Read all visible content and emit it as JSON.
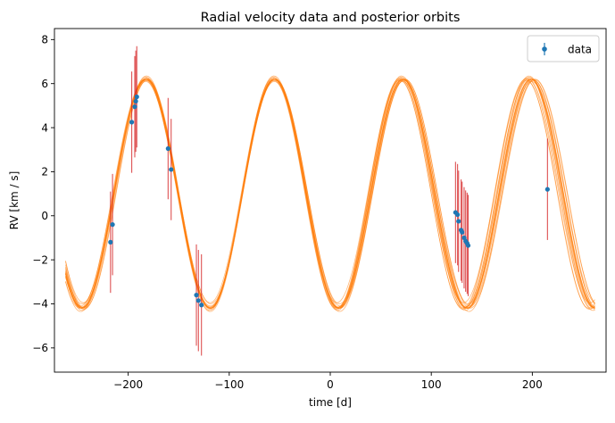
{
  "chart_data": {
    "type": "scatter",
    "title": "Radial velocity data and posterior orbits",
    "xlabel": "time [d]",
    "ylabel": "RV [km / s]",
    "xlim": [
      -273,
      273
    ],
    "ylim": [
      -7.1,
      8.5
    ],
    "xticks": [
      -200,
      -100,
      0,
      100,
      200
    ],
    "xtick_labels": [
      "−200",
      "−100",
      "0",
      "100",
      "200"
    ],
    "yticks": [
      -6,
      -4,
      -2,
      0,
      2,
      4,
      6,
      8
    ],
    "ytick_labels": [
      "−6",
      "−4",
      "−2",
      "0",
      "2",
      "4",
      "6",
      "8"
    ],
    "grid": false,
    "legend": {
      "position": "top-right",
      "entries": [
        "data"
      ]
    },
    "colors": {
      "data": "#1f77b4",
      "errorbar": "#d62728",
      "orbits": "#ff7f0e"
    },
    "data_series": {
      "name": "data",
      "points": [
        {
          "x": -217.5,
          "y": -1.2,
          "err": 2.3
        },
        {
          "x": -215.5,
          "y": -0.4,
          "err": 2.3
        },
        {
          "x": -196.5,
          "y": 4.25,
          "err": 2.3
        },
        {
          "x": -193.5,
          "y": 4.95,
          "err": 2.3
        },
        {
          "x": -192.5,
          "y": 5.2,
          "err": 2.3
        },
        {
          "x": -191.5,
          "y": 5.4,
          "err": 2.3
        },
        {
          "x": -160.5,
          "y": 3.05,
          "err": 2.3
        },
        {
          "x": -157.5,
          "y": 2.1,
          "err": 2.3
        },
        {
          "x": -132.5,
          "y": -3.6,
          "err": 2.3
        },
        {
          "x": -130.5,
          "y": -3.85,
          "err": 2.3
        },
        {
          "x": -127.5,
          "y": -4.05,
          "err": 2.3
        },
        {
          "x": 124,
          "y": 0.15,
          "err": 2.3
        },
        {
          "x": 126,
          "y": 0.05,
          "err": 2.3
        },
        {
          "x": 127,
          "y": -0.25,
          "err": 2.3
        },
        {
          "x": 129.5,
          "y": -0.65,
          "err": 2.3
        },
        {
          "x": 130.5,
          "y": -0.75,
          "err": 2.3
        },
        {
          "x": 132.5,
          "y": -1.0,
          "err": 2.3
        },
        {
          "x": 134,
          "y": -1.15,
          "err": 2.3
        },
        {
          "x": 135.5,
          "y": -1.25,
          "err": 2.3
        },
        {
          "x": 136.5,
          "y": -1.35,
          "err": 2.3
        },
        {
          "x": 215,
          "y": 1.2,
          "err": 2.3
        }
      ]
    },
    "posterior_orbits": {
      "x_range": [
        -262,
        262
      ],
      "curves": [
        {
          "amp": 5.2,
          "period": 127,
          "t0": -214,
          "offset": 1.0
        },
        {
          "amp": 5.2,
          "period": 126.6,
          "t0": -214,
          "offset": 1.05
        },
        {
          "amp": 5.15,
          "period": 127.3,
          "t0": -214.5,
          "offset": 0.95
        },
        {
          "amp": 5.25,
          "period": 126.2,
          "t0": -213.5,
          "offset": 1.1
        },
        {
          "amp": 5.2,
          "period": 125.8,
          "t0": -213,
          "offset": 1.0
        },
        {
          "amp": 5.2,
          "period": 127.7,
          "t0": -214.5,
          "offset": 1.0
        },
        {
          "amp": 5.1,
          "period": 125.4,
          "t0": -213,
          "offset": 1.15
        },
        {
          "amp": 5.25,
          "period": 128.1,
          "t0": -215,
          "offset": 0.9
        },
        {
          "amp": 5.2,
          "period": 126.9,
          "t0": -214,
          "offset": 1.0
        },
        {
          "amp": 5.15,
          "period": 128.4,
          "t0": -215,
          "offset": 1.05
        },
        {
          "amp": 5.2,
          "period": 125.1,
          "t0": -212.5,
          "offset": 0.95
        },
        {
          "amp": 5.3,
          "period": 126.4,
          "t0": -214,
          "offset": 1.0
        },
        {
          "amp": 5.1,
          "period": 127.5,
          "t0": -214,
          "offset": 1.1
        },
        {
          "amp": 5.2,
          "period": 124.8,
          "t0": -212,
          "offset": 1.0
        },
        {
          "amp": 5.2,
          "period": 128.7,
          "t0": -215.5,
          "offset": 1.0
        },
        {
          "amp": 5.2,
          "period": 127.1,
          "t0": -214.2,
          "offset": 1.0
        },
        {
          "amp": 5.2,
          "period": 126.8,
          "t0": -213.8,
          "offset": 1.0
        },
        {
          "amp": 5.2,
          "period": 127.2,
          "t0": -214.1,
          "offset": 1.0
        }
      ]
    }
  }
}
